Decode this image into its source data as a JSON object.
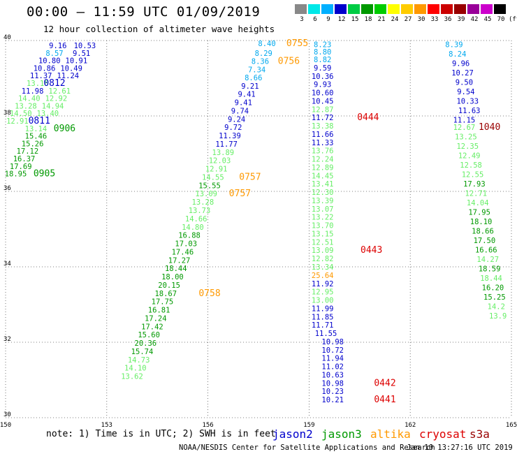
{
  "header": {
    "title": "00:00 – 11:59 UTC 01/09/2019",
    "subtitle": "12 hour collection of altimeter wave heights"
  },
  "colorbar": {
    "ticks": [
      "3",
      "6",
      "9",
      "12",
      "15",
      "18",
      "21",
      "24",
      "27",
      "30",
      "33",
      "36",
      "39",
      "42",
      "45",
      "70"
    ],
    "unit": "(ft)",
    "colors": [
      "#888888",
      "#00e8e8",
      "#00b0ff",
      "#0000cc",
      "#00cc44",
      "#009900",
      "#00cc00",
      "#ffff00",
      "#ffcc00",
      "#ff9900",
      "#ff0000",
      "#cc0000",
      "#990000",
      "#990099",
      "#cc00cc",
      "#000000"
    ]
  },
  "footer": {
    "note": "note: 1) Time is in UTC; 2) SWH is in feet",
    "satellites": [
      {
        "name": "jason2",
        "color": "#0000cc"
      },
      {
        "name": "jason3",
        "color": "#009900"
      },
      {
        "name": "altika",
        "color": "#ff9900"
      },
      {
        "name": "cryosat",
        "color": "#dd0000"
      },
      {
        "name": "s3a",
        "color": "#990000"
      }
    ],
    "credit": "NOAA/NESDIS Center for Satellite Applications and Research",
    "timestamp": "Jan 10 13:27:16 UTC 2019"
  },
  "chart_data": {
    "type": "scatter",
    "title": "00:00 – 11:59 UTC 01/09/2019",
    "subtitle": "12 hour collection of altimeter wave heights",
    "xlabel": "",
    "ylabel": "",
    "xlim": [
      150,
      165
    ],
    "ylim": [
      30,
      40
    ],
    "xticks": [
      "150",
      "153",
      "156",
      "159",
      "162",
      "165"
    ],
    "yticks": [
      "30",
      "32",
      "34",
      "36",
      "38",
      "40"
    ],
    "grid": true,
    "colors": {
      "green": "#009900",
      "lightgreen": "#66ee66",
      "blue": "#0000cc",
      "cyan": "#00a8ee",
      "orange": "#ff9900",
      "red": "#dd0000",
      "darkred": "#990000"
    },
    "points": [
      {
        "lon": 151.55,
        "lat": 39.87,
        "v": "9.16",
        "c": "blue"
      },
      {
        "lon": 152.35,
        "lat": 39.87,
        "v": "10.53",
        "c": "blue"
      },
      {
        "lon": 151.45,
        "lat": 39.67,
        "v": "8.57",
        "c": "cyan"
      },
      {
        "lon": 152.25,
        "lat": 39.67,
        "v": "9.51",
        "c": "blue"
      },
      {
        "lon": 151.3,
        "lat": 39.47,
        "v": "10.80",
        "c": "blue"
      },
      {
        "lon": 152.1,
        "lat": 39.47,
        "v": "10.91",
        "c": "blue"
      },
      {
        "lon": 151.15,
        "lat": 39.27,
        "v": "10.86",
        "c": "blue"
      },
      {
        "lon": 151.95,
        "lat": 39.27,
        "v": "10.49",
        "c": "blue"
      },
      {
        "lon": 151.05,
        "lat": 39.07,
        "v": "11.37",
        "c": "blue"
      },
      {
        "lon": 151.85,
        "lat": 39.07,
        "v": "11.24",
        "c": "blue"
      },
      {
        "lon": 150.95,
        "lat": 38.87,
        "v": "13.18",
        "c": "lightgreen"
      },
      {
        "lon": 151.45,
        "lat": 38.87,
        "v": "0812",
        "c": "blue"
      },
      {
        "lon": 150.8,
        "lat": 38.67,
        "v": "11.98",
        "c": "blue"
      },
      {
        "lon": 151.6,
        "lat": 38.67,
        "v": "12.61",
        "c": "lightgreen"
      },
      {
        "lon": 150.7,
        "lat": 38.47,
        "v": "14.40",
        "c": "lightgreen"
      },
      {
        "lon": 151.5,
        "lat": 38.47,
        "v": "12.92",
        "c": "lightgreen"
      },
      {
        "lon": 150.6,
        "lat": 38.27,
        "v": "13.28",
        "c": "lightgreen"
      },
      {
        "lon": 151.4,
        "lat": 38.27,
        "v": "14.94",
        "c": "lightgreen"
      },
      {
        "lon": 150.45,
        "lat": 38.07,
        "v": "14.50",
        "c": "lightgreen"
      },
      {
        "lon": 151.25,
        "lat": 38.07,
        "v": "13.40",
        "c": "lightgreen"
      },
      {
        "lon": 150.35,
        "lat": 37.87,
        "v": "12.91",
        "c": "lightgreen"
      },
      {
        "lon": 151.0,
        "lat": 37.87,
        "v": "0811",
        "c": "blue"
      },
      {
        "lon": 150.9,
        "lat": 37.67,
        "v": "13.14",
        "c": "lightgreen"
      },
      {
        "lon": 151.75,
        "lat": 37.67,
        "v": "0906",
        "c": "green"
      },
      {
        "lon": 150.9,
        "lat": 37.47,
        "v": "15.46",
        "c": "green"
      },
      {
        "lon": 150.8,
        "lat": 37.27,
        "v": "15.26",
        "c": "green"
      },
      {
        "lon": 150.65,
        "lat": 37.07,
        "v": "17.12",
        "c": "green"
      },
      {
        "lon": 150.55,
        "lat": 36.87,
        "v": "16.37",
        "c": "green"
      },
      {
        "lon": 150.45,
        "lat": 36.67,
        "v": "17.69",
        "c": "green"
      },
      {
        "lon": 150.3,
        "lat": 36.47,
        "v": "18.95",
        "c": "green"
      },
      {
        "lon": 151.15,
        "lat": 36.47,
        "v": "0905",
        "c": "green"
      },
      {
        "lon": 157.75,
        "lat": 39.93,
        "v": "8.40",
        "c": "cyan"
      },
      {
        "lon": 158.65,
        "lat": 39.93,
        "v": "0755",
        "c": "orange"
      },
      {
        "lon": 157.65,
        "lat": 39.67,
        "v": "8.29",
        "c": "cyan"
      },
      {
        "lon": 157.55,
        "lat": 39.45,
        "v": "8.36",
        "c": "cyan"
      },
      {
        "lon": 158.4,
        "lat": 39.45,
        "v": "0756",
        "c": "orange"
      },
      {
        "lon": 157.45,
        "lat": 39.23,
        "v": "7.34",
        "c": "cyan"
      },
      {
        "lon": 157.35,
        "lat": 39.02,
        "v": "8.66",
        "c": "cyan"
      },
      {
        "lon": 157.25,
        "lat": 38.8,
        "v": "9.21",
        "c": "blue"
      },
      {
        "lon": 157.15,
        "lat": 38.58,
        "v": "9.41",
        "c": "blue"
      },
      {
        "lon": 157.05,
        "lat": 38.36,
        "v": "9.41",
        "c": "blue"
      },
      {
        "lon": 156.95,
        "lat": 38.14,
        "v": "9.74",
        "c": "blue"
      },
      {
        "lon": 156.85,
        "lat": 37.92,
        "v": "9.24",
        "c": "blue"
      },
      {
        "lon": 156.75,
        "lat": 37.7,
        "v": "9.72",
        "c": "blue"
      },
      {
        "lon": 156.65,
        "lat": 37.48,
        "v": "11.39",
        "c": "blue"
      },
      {
        "lon": 156.55,
        "lat": 37.26,
        "v": "11.77",
        "c": "blue"
      },
      {
        "lon": 156.45,
        "lat": 37.04,
        "v": "13.89",
        "c": "lightgreen"
      },
      {
        "lon": 156.35,
        "lat": 36.82,
        "v": "12.03",
        "c": "lightgreen"
      },
      {
        "lon": 156.25,
        "lat": 36.6,
        "v": "12.91",
        "c": "lightgreen"
      },
      {
        "lon": 156.15,
        "lat": 36.38,
        "v": "14.55",
        "c": "lightgreen"
      },
      {
        "lon": 157.25,
        "lat": 36.38,
        "v": "0757",
        "c": "orange"
      },
      {
        "lon": 156.05,
        "lat": 36.16,
        "v": "15.55",
        "c": "green"
      },
      {
        "lon": 156.95,
        "lat": 35.94,
        "v": "0757",
        "c": "orange"
      },
      {
        "lon": 155.95,
        "lat": 35.94,
        "v": "13.09",
        "c": "lightgreen"
      },
      {
        "lon": 155.85,
        "lat": 35.72,
        "v": "13.28",
        "c": "lightgreen"
      },
      {
        "lon": 155.75,
        "lat": 35.5,
        "v": "13.73",
        "c": "lightgreen"
      },
      {
        "lon": 155.65,
        "lat": 35.28,
        "v": "14.66",
        "c": "lightgreen"
      },
      {
        "lon": 155.55,
        "lat": 35.06,
        "v": "14.80",
        "c": "lightgreen"
      },
      {
        "lon": 155.45,
        "lat": 34.84,
        "v": "16.88",
        "c": "green"
      },
      {
        "lon": 155.35,
        "lat": 34.62,
        "v": "17.03",
        "c": "green"
      },
      {
        "lon": 155.25,
        "lat": 34.4,
        "v": "17.46",
        "c": "green"
      },
      {
        "lon": 155.15,
        "lat": 34.18,
        "v": "17.27",
        "c": "green"
      },
      {
        "lon": 155.05,
        "lat": 33.96,
        "v": "18.44",
        "c": "green"
      },
      {
        "lon": 154.95,
        "lat": 33.74,
        "v": "18.00",
        "c": "green"
      },
      {
        "lon": 154.85,
        "lat": 33.52,
        "v": "20.15",
        "c": "green"
      },
      {
        "lon": 154.75,
        "lat": 33.3,
        "v": "18.67",
        "c": "green"
      },
      {
        "lon": 156.05,
        "lat": 33.3,
        "v": "0758",
        "c": "orange"
      },
      {
        "lon": 154.65,
        "lat": 33.08,
        "v": "17.75",
        "c": "green"
      },
      {
        "lon": 154.55,
        "lat": 32.86,
        "v": "16.81",
        "c": "green"
      },
      {
        "lon": 154.45,
        "lat": 32.64,
        "v": "17.24",
        "c": "green"
      },
      {
        "lon": 154.35,
        "lat": 32.42,
        "v": "17.42",
        "c": "green"
      },
      {
        "lon": 154.25,
        "lat": 32.2,
        "v": "15.60",
        "c": "green"
      },
      {
        "lon": 154.15,
        "lat": 31.98,
        "v": "20.36",
        "c": "green"
      },
      {
        "lon": 154.05,
        "lat": 31.76,
        "v": "15.74",
        "c": "green"
      },
      {
        "lon": 153.95,
        "lat": 31.54,
        "v": "14.73",
        "c": "lightgreen"
      },
      {
        "lon": 153.85,
        "lat": 31.32,
        "v": "14.10",
        "c": "lightgreen"
      },
      {
        "lon": 153.75,
        "lat": 31.1,
        "v": "13.62",
        "c": "lightgreen"
      },
      {
        "lon": 159.4,
        "lat": 39.9,
        "v": "8.23",
        "c": "cyan"
      },
      {
        "lon": 159.4,
        "lat": 39.7,
        "v": "8.80",
        "c": "cyan"
      },
      {
        "lon": 159.4,
        "lat": 39.5,
        "v": "8.82",
        "c": "cyan"
      },
      {
        "lon": 159.4,
        "lat": 39.28,
        "v": "9.59",
        "c": "blue"
      },
      {
        "lon": 159.4,
        "lat": 39.06,
        "v": "10.36",
        "c": "blue"
      },
      {
        "lon": 159.4,
        "lat": 38.84,
        "v": "9.93",
        "c": "blue"
      },
      {
        "lon": 159.4,
        "lat": 38.62,
        "v": "10.60",
        "c": "blue"
      },
      {
        "lon": 159.4,
        "lat": 38.4,
        "v": "10.45",
        "c": "blue"
      },
      {
        "lon": 159.4,
        "lat": 38.18,
        "v": "12.87",
        "c": "lightgreen"
      },
      {
        "lon": 159.4,
        "lat": 37.96,
        "v": "11.72",
        "c": "blue"
      },
      {
        "lon": 160.75,
        "lat": 37.96,
        "v": "0444",
        "c": "red"
      },
      {
        "lon": 159.4,
        "lat": 37.74,
        "v": "13.38",
        "c": "lightgreen"
      },
      {
        "lon": 159.4,
        "lat": 37.52,
        "v": "11.66",
        "c": "blue"
      },
      {
        "lon": 159.4,
        "lat": 37.3,
        "v": "11.33",
        "c": "blue"
      },
      {
        "lon": 159.4,
        "lat": 37.08,
        "v": "13.76",
        "c": "lightgreen"
      },
      {
        "lon": 159.4,
        "lat": 36.86,
        "v": "12.24",
        "c": "lightgreen"
      },
      {
        "lon": 159.4,
        "lat": 36.64,
        "v": "12.89",
        "c": "lightgreen"
      },
      {
        "lon": 159.4,
        "lat": 36.42,
        "v": "14.45",
        "c": "lightgreen"
      },
      {
        "lon": 159.4,
        "lat": 36.2,
        "v": "13.41",
        "c": "lightgreen"
      },
      {
        "lon": 159.4,
        "lat": 35.98,
        "v": "12.30",
        "c": "lightgreen"
      },
      {
        "lon": 159.4,
        "lat": 35.76,
        "v": "13.39",
        "c": "lightgreen"
      },
      {
        "lon": 159.4,
        "lat": 35.54,
        "v": "13.07",
        "c": "lightgreen"
      },
      {
        "lon": 159.4,
        "lat": 35.32,
        "v": "13.22",
        "c": "lightgreen"
      },
      {
        "lon": 159.4,
        "lat": 35.1,
        "v": "13.70",
        "c": "lightgreen"
      },
      {
        "lon": 159.4,
        "lat": 34.88,
        "v": "13.15",
        "c": "lightgreen"
      },
      {
        "lon": 159.4,
        "lat": 34.66,
        "v": "12.51",
        "c": "lightgreen"
      },
      {
        "lon": 159.4,
        "lat": 34.44,
        "v": "13.09",
        "c": "lightgreen"
      },
      {
        "lon": 160.85,
        "lat": 34.44,
        "v": "0443",
        "c": "red"
      },
      {
        "lon": 159.4,
        "lat": 34.22,
        "v": "12.82",
        "c": "lightgreen"
      },
      {
        "lon": 159.4,
        "lat": 34.0,
        "v": "13.34",
        "c": "lightgreen"
      },
      {
        "lon": 159.4,
        "lat": 33.78,
        "v": "25.64",
        "c": "orange"
      },
      {
        "lon": 159.4,
        "lat": 33.56,
        "v": "11.92",
        "c": "blue"
      },
      {
        "lon": 159.4,
        "lat": 33.34,
        "v": "12.95",
        "c": "lightgreen"
      },
      {
        "lon": 159.4,
        "lat": 33.12,
        "v": "13.00",
        "c": "lightgreen"
      },
      {
        "lon": 159.4,
        "lat": 32.9,
        "v": "11.99",
        "c": "blue"
      },
      {
        "lon": 159.4,
        "lat": 32.68,
        "v": "11.85",
        "c": "blue"
      },
      {
        "lon": 159.4,
        "lat": 32.46,
        "v": "11.71",
        "c": "blue"
      },
      {
        "lon": 159.5,
        "lat": 32.24,
        "v": "11.55",
        "c": "blue"
      },
      {
        "lon": 159.7,
        "lat": 32.02,
        "v": "10.98",
        "c": "blue"
      },
      {
        "lon": 159.7,
        "lat": 31.8,
        "v": "10.72",
        "c": "blue"
      },
      {
        "lon": 159.7,
        "lat": 31.58,
        "v": "11.94",
        "c": "blue"
      },
      {
        "lon": 159.7,
        "lat": 31.36,
        "v": "11.02",
        "c": "blue"
      },
      {
        "lon": 159.7,
        "lat": 31.14,
        "v": "10.63",
        "c": "blue"
      },
      {
        "lon": 159.7,
        "lat": 30.92,
        "v": "10.98",
        "c": "blue"
      },
      {
        "lon": 161.25,
        "lat": 30.92,
        "v": "0442",
        "c": "red"
      },
      {
        "lon": 159.7,
        "lat": 30.7,
        "v": "10.23",
        "c": "blue"
      },
      {
        "lon": 159.7,
        "lat": 30.48,
        "v": "10.21",
        "c": "blue"
      },
      {
        "lon": 161.25,
        "lat": 30.48,
        "v": "0441",
        "c": "red"
      },
      {
        "lon": 163.3,
        "lat": 39.9,
        "v": "8.39",
        "c": "cyan"
      },
      {
        "lon": 163.4,
        "lat": 39.65,
        "v": "8.24",
        "c": "cyan"
      },
      {
        "lon": 163.5,
        "lat": 39.4,
        "v": "9.96",
        "c": "blue"
      },
      {
        "lon": 163.55,
        "lat": 39.15,
        "v": "10.27",
        "c": "blue"
      },
      {
        "lon": 163.6,
        "lat": 38.9,
        "v": "9.50",
        "c": "blue"
      },
      {
        "lon": 163.65,
        "lat": 38.65,
        "v": "9.54",
        "c": "blue"
      },
      {
        "lon": 163.7,
        "lat": 38.4,
        "v": "10.33",
        "c": "blue"
      },
      {
        "lon": 163.75,
        "lat": 38.15,
        "v": "11.63",
        "c": "blue"
      },
      {
        "lon": 163.6,
        "lat": 37.9,
        "v": "11.15",
        "c": "blue"
      },
      {
        "lon": 163.6,
        "lat": 37.7,
        "v": "12.67",
        "c": "lightgreen"
      },
      {
        "lon": 164.35,
        "lat": 37.7,
        "v": "1040",
        "c": "darkred"
      },
      {
        "lon": 163.65,
        "lat": 37.45,
        "v": "13.25",
        "c": "lightgreen"
      },
      {
        "lon": 163.7,
        "lat": 37.2,
        "v": "12.35",
        "c": "lightgreen"
      },
      {
        "lon": 163.75,
        "lat": 36.95,
        "v": "12.49",
        "c": "lightgreen"
      },
      {
        "lon": 163.8,
        "lat": 36.7,
        "v": "12.58",
        "c": "lightgreen"
      },
      {
        "lon": 163.85,
        "lat": 36.45,
        "v": "12.55",
        "c": "lightgreen"
      },
      {
        "lon": 163.9,
        "lat": 36.2,
        "v": "17.93",
        "c": "green"
      },
      {
        "lon": 163.95,
        "lat": 35.95,
        "v": "12.71",
        "c": "lightgreen"
      },
      {
        "lon": 164.0,
        "lat": 35.7,
        "v": "14.04",
        "c": "lightgreen"
      },
      {
        "lon": 164.05,
        "lat": 35.45,
        "v": "17.95",
        "c": "green"
      },
      {
        "lon": 164.1,
        "lat": 35.2,
        "v": "18.10",
        "c": "green"
      },
      {
        "lon": 164.15,
        "lat": 34.95,
        "v": "18.66",
        "c": "green"
      },
      {
        "lon": 164.2,
        "lat": 34.7,
        "v": "17.50",
        "c": "green"
      },
      {
        "lon": 164.25,
        "lat": 34.45,
        "v": "16.66",
        "c": "green"
      },
      {
        "lon": 164.3,
        "lat": 34.2,
        "v": "14.27",
        "c": "lightgreen"
      },
      {
        "lon": 164.35,
        "lat": 33.95,
        "v": "18.59",
        "c": "green"
      },
      {
        "lon": 164.4,
        "lat": 33.7,
        "v": "18.44",
        "c": "lightgreen"
      },
      {
        "lon": 164.45,
        "lat": 33.45,
        "v": "16.20",
        "c": "green"
      },
      {
        "lon": 164.5,
        "lat": 33.2,
        "v": "15.25",
        "c": "green"
      },
      {
        "lon": 164.55,
        "lat": 32.95,
        "v": "14.2",
        "c": "lightgreen"
      },
      {
        "lon": 164.6,
        "lat": 32.7,
        "v": "13.9",
        "c": "lightgreen"
      }
    ]
  }
}
